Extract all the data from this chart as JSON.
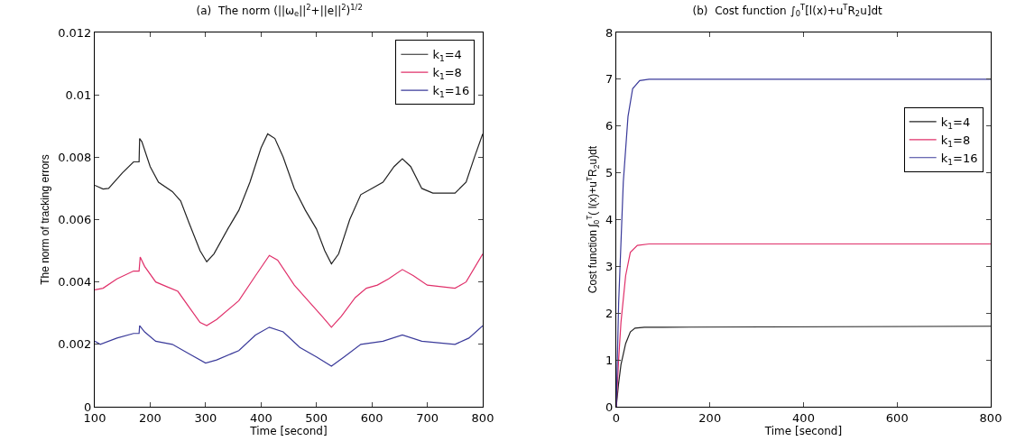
{
  "chart_data": [
    {
      "type": "line",
      "title": "(a)  The norm (||ω$_{e}$||$^{2}$+||e||$^{2}$)$^{1/2}$",
      "xlabel": "Time [second]",
      "ylabel": "The norm of tracking errors",
      "xlim": [
        100,
        800
      ],
      "xticks": [
        100,
        200,
        300,
        400,
        500,
        600,
        700,
        800
      ],
      "ylim": [
        0,
        0.012
      ],
      "yticks": [
        0,
        0.002,
        0.004,
        0.006,
        0.008,
        0.01,
        0.012
      ],
      "grid": false,
      "legend": "top right",
      "series": [
        {
          "name": "k$_{1}$=4",
          "color": "#222222",
          "x": [
            100,
            115,
            125,
            150,
            170,
            180,
            181,
            185,
            200,
            215,
            240,
            255,
            270,
            290,
            302,
            315,
            340,
            360,
            380,
            400,
            412,
            425,
            440,
            460,
            480,
            500,
            515,
            527,
            540,
            560,
            580,
            600,
            620,
            640,
            655,
            670,
            690,
            710,
            750,
            770,
            785,
            800
          ],
          "values": [
            0.0071,
            0.00698,
            0.007,
            0.0075,
            0.00785,
            0.00785,
            0.0086,
            0.0085,
            0.0077,
            0.0072,
            0.0069,
            0.0066,
            0.0059,
            0.005,
            0.00465,
            0.0049,
            0.0057,
            0.0063,
            0.0072,
            0.0083,
            0.00875,
            0.0086,
            0.008,
            0.007,
            0.0063,
            0.0057,
            0.005,
            0.00458,
            0.0049,
            0.006,
            0.0068,
            0.007,
            0.0072,
            0.0077,
            0.00795,
            0.0077,
            0.007,
            0.00685,
            0.00685,
            0.0072,
            0.008,
            0.00875
          ]
        },
        {
          "name": "k$_{1}$=8",
          "color": "#e0306a",
          "x": [
            100,
            115,
            140,
            170,
            180,
            182,
            190,
            210,
            230,
            250,
            270,
            290,
            302,
            320,
            360,
            390,
            415,
            430,
            460,
            490,
            510,
            527,
            545,
            570,
            590,
            610,
            630,
            655,
            675,
            700,
            750,
            770,
            800
          ],
          "values": [
            0.00375,
            0.0038,
            0.0041,
            0.00435,
            0.00435,
            0.0048,
            0.0045,
            0.004,
            0.00385,
            0.0037,
            0.0032,
            0.0027,
            0.0026,
            0.0028,
            0.0034,
            0.0042,
            0.00485,
            0.0047,
            0.0039,
            0.0033,
            0.0029,
            0.00255,
            0.0029,
            0.0035,
            0.0038,
            0.0039,
            0.0041,
            0.0044,
            0.0042,
            0.0039,
            0.0038,
            0.004,
            0.0049
          ]
        },
        {
          "name": "k$_{1}$=16",
          "color": "#3a3a9a",
          "x": [
            100,
            110,
            140,
            170,
            180,
            181,
            190,
            210,
            240,
            270,
            300,
            320,
            360,
            390,
            415,
            440,
            470,
            500,
            527,
            550,
            580,
            620,
            655,
            690,
            750,
            775,
            800
          ],
          "values": [
            0.0021,
            0.002,
            0.0022,
            0.00235,
            0.00235,
            0.0026,
            0.0024,
            0.0021,
            0.002,
            0.0017,
            0.0014,
            0.0015,
            0.0018,
            0.0023,
            0.00255,
            0.0024,
            0.0019,
            0.0016,
            0.0013,
            0.0016,
            0.002,
            0.0021,
            0.0023,
            0.0021,
            0.002,
            0.0022,
            0.0026
          ]
        }
      ]
    },
    {
      "type": "line",
      "title": "(b)  Cost function ∫$_{0}$$^{T}$[l(x)+u$^{T}$R$_{2}$u]dt",
      "xlabel": "Time [second]",
      "ylabel": "Cost function ∫$_{0}$$^{T}$( l(x)+u$^{T}$R$_{2}$u)dt",
      "xlim": [
        0,
        800
      ],
      "xticks": [
        0,
        200,
        400,
        600,
        800
      ],
      "ylim": [
        0,
        8
      ],
      "yticks": [
        0,
        1,
        2,
        3,
        4,
        5,
        6,
        7,
        8
      ],
      "grid": false,
      "legend": "top right",
      "series": [
        {
          "name": "k$_{1}$=4",
          "color": "#222222",
          "x": [
            0,
            5,
            10,
            20,
            30,
            40,
            60,
            100,
            800
          ],
          "values": [
            0,
            0.5,
            0.9,
            1.35,
            1.6,
            1.68,
            1.7,
            1.7,
            1.72
          ]
        },
        {
          "name": "k$_{1}$=8",
          "color": "#e0306a",
          "x": [
            0,
            5,
            10,
            20,
            30,
            45,
            70,
            800
          ],
          "values": [
            0,
            1.0,
            1.8,
            2.8,
            3.3,
            3.45,
            3.48,
            3.48
          ]
        },
        {
          "name": "k$_{1}$=16",
          "color": "#3a3a9a",
          "x": [
            0,
            5,
            15,
            25,
            35,
            50,
            70,
            800
          ],
          "values": [
            0,
            2.2,
            4.8,
            6.2,
            6.8,
            6.97,
            7.0,
            7.0
          ]
        }
      ]
    }
  ]
}
